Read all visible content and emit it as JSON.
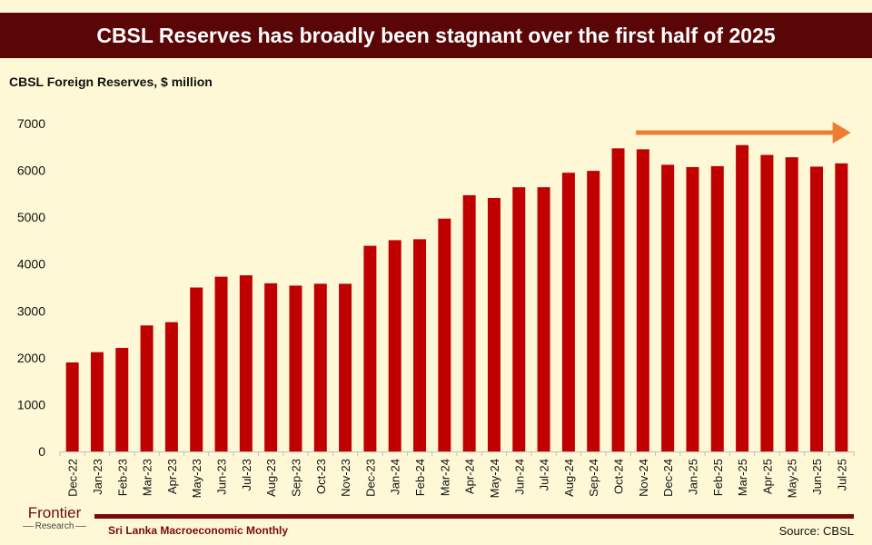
{
  "header": {
    "title": "CBSL Reserves has broadly been stagnant over the first half of 2025"
  },
  "chart_data": {
    "type": "bar",
    "title": "CBSL Reserves has broadly been stagnant over the first half of 2025",
    "ylabel": "CBSL Foreign Reserves, $ million",
    "xlabel": "",
    "ylim": [
      0,
      7000
    ],
    "yticks": [
      "0",
      "1000",
      "2000",
      "3000",
      "4000",
      "5000",
      "6000",
      "7000"
    ],
    "grid": false,
    "legend": "none",
    "annotation": "arrow over Nov-24 to Jul-25 indicating flat trend",
    "categories": [
      "Dec-22",
      "Jan-23",
      "Feb-23",
      "Mar-23",
      "Apr-23",
      "May-23",
      "Jun-23",
      "Jul-23",
      "Aug-23",
      "Sep-23",
      "Oct-23",
      "Nov-23",
      "Dec-23",
      "Jan-24",
      "Feb-24",
      "Mar-24",
      "Apr-24",
      "May-24",
      "Jun-24",
      "Jul-24",
      "Aug-24",
      "Sep-24",
      "Oct-24",
      "Nov-24",
      "Dec-24",
      "Jan-25",
      "Feb-25",
      "Mar-25",
      "Apr-25",
      "May-25",
      "Jun-25",
      "Jul-25"
    ],
    "values": [
      1900,
      2120,
      2210,
      2690,
      2760,
      3500,
      3730,
      3760,
      3590,
      3540,
      3580,
      3580,
      4390,
      4510,
      4530,
      4970,
      5470,
      5410,
      5640,
      5640,
      5950,
      5990,
      6470,
      6450,
      6120,
      6070,
      6090,
      6540,
      6330,
      6280,
      6080,
      6150
    ],
    "bar_color": "#C00000",
    "arrow_color": "#ED7D31"
  },
  "footer": {
    "logo_main": "Frontier",
    "logo_sub": "Research",
    "publication": "Sri Lanka Macroeconomic Monthly",
    "source": "Source: CBSL"
  }
}
